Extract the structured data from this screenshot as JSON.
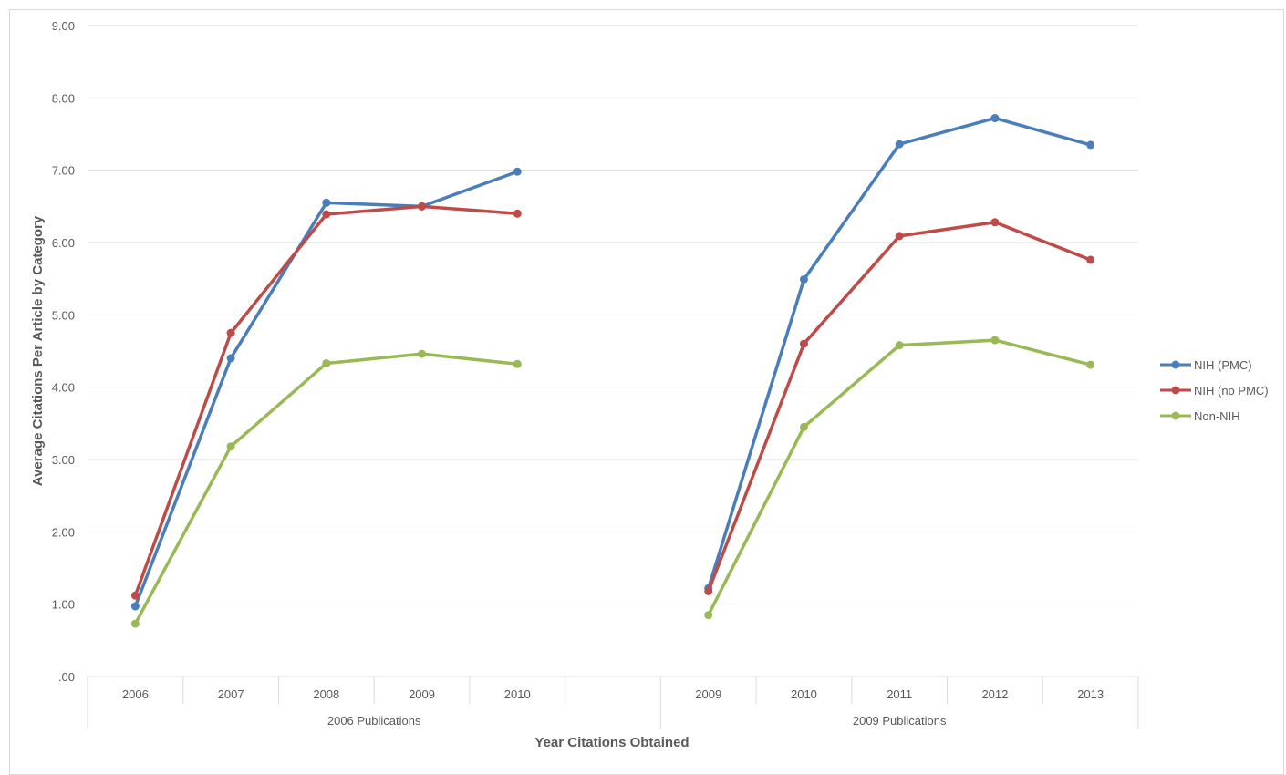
{
  "chart_data": {
    "type": "line",
    "xlabel": "Year Citations Obtained",
    "ylabel": "Average Citations Per Article by Category",
    "ylim": [
      0,
      9
    ],
    "yticks": [
      ".00",
      "1.00",
      "2.00",
      "3.00",
      "4.00",
      "5.00",
      "6.00",
      "7.00",
      "8.00",
      "9.00"
    ],
    "grid": true,
    "legend_position": "right",
    "groups": [
      {
        "label": "2006 Publications",
        "categories": [
          "2006",
          "2007",
          "2008",
          "2009",
          "2010",
          ""
        ]
      },
      {
        "label": "2009 Publications",
        "categories": [
          "2009",
          "2010",
          "2011",
          "2012",
          "2013"
        ]
      }
    ],
    "series": [
      {
        "name": "NIH (PMC)",
        "color": "#4a7ebb",
        "values": [
          0.97,
          4.4,
          6.55,
          6.5,
          6.98,
          null,
          1.22,
          5.49,
          7.36,
          7.72,
          7.35
        ]
      },
      {
        "name": "NIH (no PMC)",
        "color": "#be4b48",
        "values": [
          1.12,
          4.75,
          6.39,
          6.5,
          6.4,
          null,
          1.18,
          4.6,
          6.09,
          6.28,
          5.76
        ]
      },
      {
        "name": "Non-NIH",
        "color": "#98b954",
        "values": [
          0.73,
          3.18,
          4.33,
          4.46,
          4.32,
          null,
          0.85,
          3.45,
          4.58,
          4.65,
          4.31
        ]
      }
    ]
  }
}
